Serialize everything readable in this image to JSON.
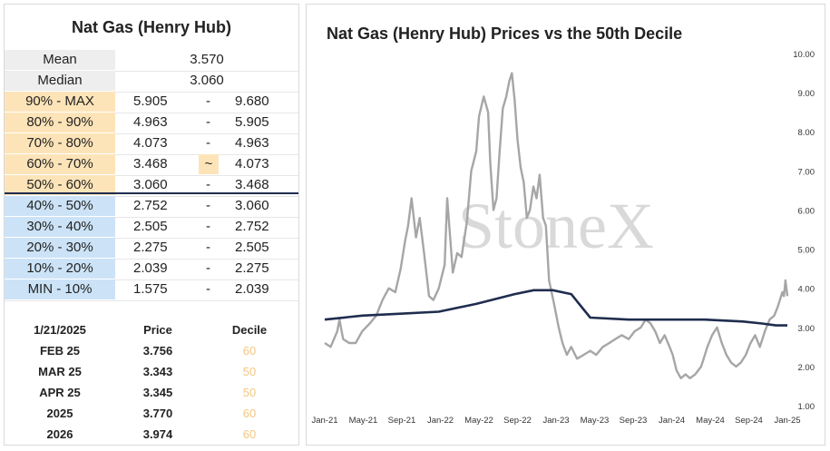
{
  "summary_table": {
    "title": "Nat Gas (Henry Hub)",
    "mean_label": "Mean",
    "mean_value": "3.570",
    "median_label": "Median",
    "median_value": "3.060",
    "rows": [
      {
        "label": "90% - MAX",
        "lo": "5.905",
        "sep": "-",
        "hi": "9.680",
        "color": "orange"
      },
      {
        "label": "80% - 90%",
        "lo": "4.963",
        "sep": "-",
        "hi": "5.905",
        "color": "orange"
      },
      {
        "label": "70% - 80%",
        "lo": "4.073",
        "sep": "-",
        "hi": "4.963",
        "color": "orange"
      },
      {
        "label": "60% - 70%",
        "lo": "3.468",
        "sep": "~",
        "hi": "4.073",
        "color": "orange"
      },
      {
        "label": "50% - 60%",
        "lo": "3.060",
        "sep": "-",
        "hi": "3.468",
        "color": "orange"
      },
      {
        "label": "40% - 50%",
        "lo": "2.752",
        "sep": "-",
        "hi": "3.060",
        "color": "blue"
      },
      {
        "label": "30% - 40%",
        "lo": "2.505",
        "sep": "-",
        "hi": "2.752",
        "color": "blue"
      },
      {
        "label": "20% - 30%",
        "lo": "2.275",
        "sep": "-",
        "hi": "2.505",
        "color": "blue"
      },
      {
        "label": "10% - 20%",
        "lo": "2.039",
        "sep": "-",
        "hi": "2.275",
        "color": "blue"
      },
      {
        "label": "MIN - 10%",
        "lo": "1.575",
        "sep": "-",
        "hi": "2.039",
        "color": "blue"
      }
    ]
  },
  "price_table": {
    "headers": [
      "1/21/2025",
      "Price",
      "Decile"
    ],
    "rows": [
      {
        "contract": "FEB 25",
        "price": "3.756",
        "decile": "60"
      },
      {
        "contract": "MAR 25",
        "price": "3.343",
        "decile": "50"
      },
      {
        "contract": "APR 25",
        "price": "3.345",
        "decile": "50"
      },
      {
        "contract": "2025",
        "price": "3.770",
        "decile": "60"
      },
      {
        "contract": "2026",
        "price": "3.974",
        "decile": "60"
      }
    ]
  },
  "colors": {
    "orange": "#fde4b8",
    "blue": "#cce3f7",
    "gray": "#eeeeee",
    "price_line": "#a6a6a6",
    "decile_line": "#1f2d4e",
    "divider": "#1f2d4e"
  },
  "watermark": "StoneX",
  "chart_data": {
    "type": "line",
    "title": "Nat Gas (Henry Hub) Prices vs the 50th Decile",
    "xlabel": "",
    "ylabel": "",
    "ylim": [
      1.0,
      10.0
    ],
    "yticks": [
      "1.00",
      "2.00",
      "3.00",
      "4.00",
      "5.00",
      "6.00",
      "7.00",
      "8.00",
      "9.00",
      "10.00"
    ],
    "xticks": [
      "Jan-21",
      "May-21",
      "Sep-21",
      "Jan-22",
      "May-22",
      "Sep-22",
      "Jan-23",
      "May-23",
      "Sep-23",
      "Jan-24",
      "May-24",
      "Sep-24",
      "Jan-25"
    ],
    "grid": false,
    "legend": "none",
    "series": [
      {
        "color": "#a6a6a6",
        "x": [
          "2021-01-01",
          "2021-01-20",
          "2021-02-10",
          "2021-02-17",
          "2021-03-01",
          "2021-03-20",
          "2021-04-10",
          "2021-05-01",
          "2021-05-25",
          "2021-06-15",
          "2021-07-05",
          "2021-07-25",
          "2021-08-15",
          "2021-09-01",
          "2021-09-15",
          "2021-09-25",
          "2021-10-06",
          "2021-10-20",
          "2021-11-01",
          "2021-11-15",
          "2021-12-01",
          "2021-12-15",
          "2022-01-01",
          "2022-01-20",
          "2022-01-28",
          "2022-02-15",
          "2022-03-01",
          "2022-03-15",
          "2022-04-01",
          "2022-04-15",
          "2022-05-01",
          "2022-05-10",
          "2022-05-25",
          "2022-06-08",
          "2022-06-15",
          "2022-06-25",
          "2022-07-05",
          "2022-07-15",
          "2022-07-25",
          "2022-08-05",
          "2022-08-15",
          "2022-08-23",
          "2022-09-01",
          "2022-09-10",
          "2022-09-20",
          "2022-09-30",
          "2022-10-10",
          "2022-10-20",
          "2022-10-31",
          "2022-11-10",
          "2022-11-20",
          "2022-12-01",
          "2022-12-10",
          "2022-12-20",
          "2023-01-05",
          "2023-01-20",
          "2023-02-01",
          "2023-02-15",
          "2023-03-01",
          "2023-03-20",
          "2023-04-10",
          "2023-05-01",
          "2023-05-20",
          "2023-06-10",
          "2023-07-01",
          "2023-07-20",
          "2023-08-10",
          "2023-09-01",
          "2023-09-20",
          "2023-10-10",
          "2023-10-25",
          "2023-11-10",
          "2023-11-25",
          "2023-12-10",
          "2023-12-25",
          "2024-01-10",
          "2024-01-20",
          "2024-02-01",
          "2024-02-15",
          "2024-03-01",
          "2024-03-15",
          "2024-04-01",
          "2024-04-20",
          "2024-05-10",
          "2024-05-25",
          "2024-06-10",
          "2024-06-25",
          "2024-07-10",
          "2024-07-25",
          "2024-08-10",
          "2024-08-25",
          "2024-09-10",
          "2024-09-25",
          "2024-10-10",
          "2024-10-25",
          "2024-11-10",
          "2024-11-25",
          "2024-12-10",
          "2024-12-20",
          "2025-01-05",
          "2025-01-10",
          "2025-01-15",
          "2025-01-21"
        ],
        "y": [
          2.6,
          2.5,
          2.9,
          3.2,
          2.7,
          2.6,
          2.6,
          2.9,
          3.1,
          3.3,
          3.7,
          4.0,
          3.9,
          4.5,
          5.2,
          5.6,
          6.3,
          5.3,
          5.8,
          4.9,
          3.8,
          3.7,
          4.0,
          4.6,
          6.3,
          4.4,
          4.9,
          4.8,
          5.7,
          7.0,
          7.5,
          8.4,
          8.9,
          8.5,
          7.2,
          6.0,
          6.3,
          7.5,
          8.6,
          8.9,
          9.3,
          9.5,
          8.8,
          7.8,
          7.1,
          6.7,
          5.8,
          6.0,
          6.6,
          6.3,
          6.9,
          5.8,
          5.6,
          4.2,
          3.6,
          3.0,
          2.6,
          2.3,
          2.5,
          2.2,
          2.3,
          2.4,
          2.3,
          2.5,
          2.6,
          2.7,
          2.8,
          2.7,
          2.9,
          3.0,
          3.2,
          3.1,
          2.9,
          2.6,
          2.8,
          2.5,
          2.3,
          1.9,
          1.7,
          1.8,
          1.7,
          1.8,
          2.0,
          2.5,
          2.8,
          3.0,
          2.6,
          2.3,
          2.1,
          2.0,
          2.1,
          2.3,
          2.6,
          2.8,
          2.5,
          2.9,
          3.2,
          3.3,
          3.5,
          3.9,
          3.8,
          4.2,
          3.8
        ]
      },
      {
        "color": "#1f2d4e",
        "x": [
          "2021-01-01",
          "2021-05-01",
          "2021-09-01",
          "2022-01-01",
          "2022-05-01",
          "2022-09-01",
          "2022-11-01",
          "2023-01-01",
          "2023-03-01",
          "2023-05-01",
          "2023-09-01",
          "2024-01-01",
          "2024-05-01",
          "2024-09-01",
          "2024-11-01",
          "2024-12-15",
          "2025-01-21"
        ],
        "y": [
          3.2,
          3.3,
          3.35,
          3.4,
          3.6,
          3.85,
          3.95,
          3.95,
          3.85,
          3.25,
          3.2,
          3.2,
          3.2,
          3.15,
          3.1,
          3.05,
          3.05
        ]
      }
    ]
  }
}
